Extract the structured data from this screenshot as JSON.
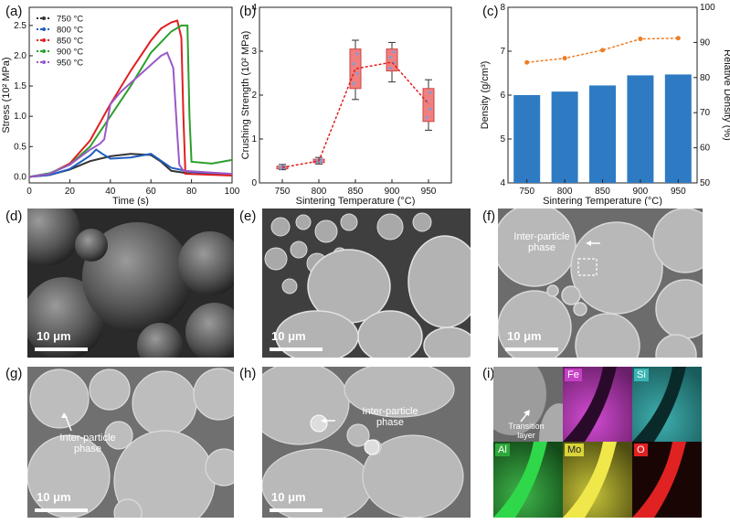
{
  "panels": {
    "a": "(a)",
    "b": "(b)",
    "c": "(c)",
    "d": "(d)",
    "e": "(e)",
    "f": "(f)",
    "g": "(g)",
    "h": "(h)",
    "i": "(i)"
  },
  "chart_data": [
    {
      "type": "line",
      "xlabel": "Time (s)",
      "ylabel": "Stress (10² MPa)",
      "xlim": [
        0,
        100
      ],
      "ylim": [
        -0.1,
        2.8
      ],
      "xticks": [
        "0",
        "20",
        "40",
        "60",
        "80",
        "100"
      ],
      "yticks": [
        "0.0",
        "0.5",
        "1.0",
        "1.5",
        "2.0",
        "2.5"
      ],
      "legend_position": "top-left",
      "series": [
        {
          "name": "750 °C",
          "color": "#333333",
          "x": [
            0,
            10,
            20,
            30,
            40,
            50,
            60,
            65,
            70,
            80,
            90,
            100
          ],
          "y": [
            0,
            0.03,
            0.12,
            0.26,
            0.34,
            0.38,
            0.36,
            0.25,
            0.1,
            0.05,
            0.04,
            0.03
          ]
        },
        {
          "name": "800 °C",
          "color": "#1f5fbf",
          "x": [
            0,
            10,
            20,
            30,
            33,
            36,
            40,
            50,
            60,
            70,
            80,
            90,
            100
          ],
          "y": [
            0,
            0.03,
            0.13,
            0.35,
            0.45,
            0.38,
            0.3,
            0.32,
            0.38,
            0.15,
            0.08,
            0.06,
            0.05
          ]
        },
        {
          "name": "850 °C",
          "color": "#e02020",
          "x": [
            0,
            10,
            20,
            30,
            40,
            50,
            60,
            65,
            70,
            73,
            75,
            76,
            77,
            100
          ],
          "y": [
            0,
            0.05,
            0.22,
            0.6,
            1.2,
            1.75,
            2.25,
            2.45,
            2.55,
            2.58,
            2.3,
            1.0,
            0.05,
            0.02
          ]
        },
        {
          "name": "900 °C",
          "color": "#2ca02c",
          "x": [
            0,
            10,
            20,
            30,
            40,
            50,
            60,
            70,
            75,
            78,
            79,
            80,
            90,
            100
          ],
          "y": [
            0,
            0.06,
            0.2,
            0.5,
            1.0,
            1.5,
            2.05,
            2.4,
            2.5,
            2.5,
            1.0,
            0.25,
            0.22,
            0.28
          ]
        },
        {
          "name": "950 °C",
          "color": "#9b59c8",
          "x": [
            0,
            10,
            20,
            30,
            35,
            37,
            40,
            45,
            50,
            55,
            60,
            65,
            68,
            71,
            73,
            74,
            76,
            100
          ],
          "y": [
            0,
            0.05,
            0.2,
            0.45,
            0.55,
            0.62,
            1.2,
            1.4,
            1.55,
            1.7,
            1.85,
            2.0,
            2.05,
            1.8,
            0.7,
            0.2,
            0.1,
            0.05
          ]
        }
      ]
    },
    {
      "type": "box",
      "xlabel": "Sintering Temperature (°C)",
      "ylabel": "Crushing Strength (10² MPa)",
      "ylim": [
        0,
        4
      ],
      "categories": [
        "750",
        "800",
        "850",
        "900",
        "950"
      ],
      "yticks": [
        "0",
        "1",
        "2",
        "3",
        "4"
      ],
      "box_color": "#f08080",
      "line_color": "#e02020",
      "mean": [
        0.35,
        0.5,
        2.6,
        2.75,
        1.8
      ],
      "q1": [
        0.32,
        0.46,
        2.15,
        2.55,
        1.4
      ],
      "q3": [
        0.38,
        0.54,
        3.05,
        3.05,
        2.15
      ],
      "min": [
        0.3,
        0.43,
        1.9,
        2.3,
        1.2
      ],
      "max": [
        0.42,
        0.58,
        3.25,
        3.2,
        2.35
      ]
    },
    {
      "type": "bar+line",
      "xlabel": "Sintering Temperature (°C)",
      "ylabel": "Density (g/cm³)",
      "y2label": "Relative Density (%)",
      "ylim": [
        4,
        8
      ],
      "y2lim": [
        50,
        100
      ],
      "yticks": [
        "4",
        "5",
        "6",
        "7",
        "8"
      ],
      "y2ticks": [
        "50",
        "60",
        "70",
        "80",
        "90",
        "100"
      ],
      "categories": [
        "750",
        "800",
        "850",
        "900",
        "950"
      ],
      "bar_color": "#2e7bc4",
      "line_color": "#ef7d22",
      "density": [
        6.0,
        6.08,
        6.22,
        6.45,
        6.47
      ],
      "relative_density": [
        84.3,
        85.5,
        87.8,
        91.0,
        91.2
      ]
    }
  ],
  "micrographs": {
    "scale_bar": "10 μm",
    "f_anno": "Inter-particle phase",
    "g_anno": "Inter-particle phase",
    "h_anno": "Inter-particle phase",
    "i_anno": "Transition layer",
    "elements": [
      "Fe",
      "Si",
      "Al",
      "Mo",
      "O"
    ]
  }
}
